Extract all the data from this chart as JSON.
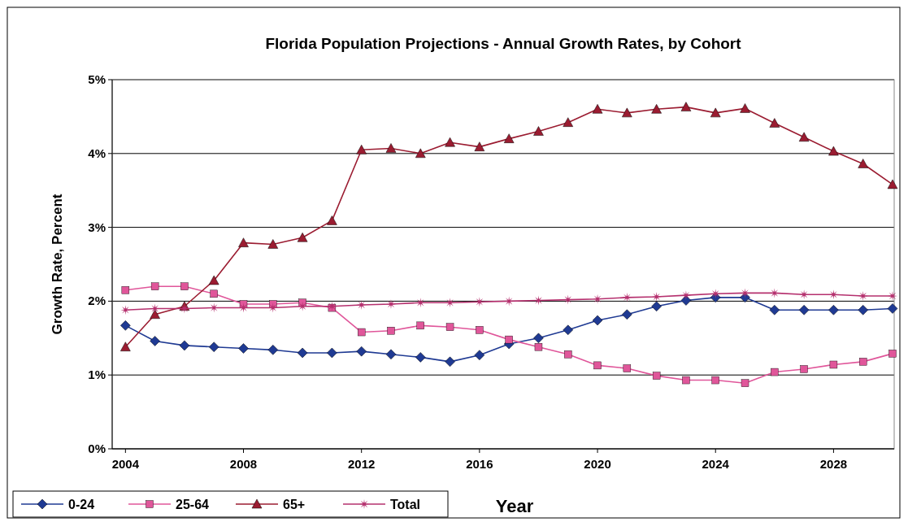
{
  "chart_data": {
    "type": "line",
    "title": "Florida Population Projections - Annual Growth Rates, by Cohort",
    "xlabel": "Year",
    "ylabel": "Growth Rate, Percent",
    "x": [
      2004,
      2005,
      2006,
      2007,
      2008,
      2009,
      2010,
      2011,
      2012,
      2013,
      2014,
      2015,
      2016,
      2017,
      2018,
      2019,
      2020,
      2021,
      2022,
      2023,
      2024,
      2025,
      2026,
      2027,
      2028,
      2029,
      2030
    ],
    "xlim": [
      2003.55,
      2030
    ],
    "xticks": [
      2004,
      2008,
      2012,
      2016,
      2020,
      2024,
      2028
    ],
    "ylim": [
      0,
      5
    ],
    "yticks": [
      {
        "value": 0,
        "label": "0%"
      },
      {
        "value": 1,
        "label": "1%"
      },
      {
        "value": 2,
        "label": "2%"
      },
      {
        "value": 3,
        "label": "3%"
      },
      {
        "value": 4,
        "label": "4%"
      },
      {
        "value": 5,
        "label": "5%"
      }
    ],
    "grid": "y",
    "legend": "bottom left",
    "series": [
      {
        "name": "0-24",
        "color": "#1f3a93",
        "marker": "diamond",
        "values": [
          1.67,
          1.46,
          1.4,
          1.38,
          1.36,
          1.34,
          1.3,
          1.3,
          1.32,
          1.28,
          1.24,
          1.18,
          1.27,
          1.42,
          1.5,
          1.61,
          1.74,
          1.82,
          1.93,
          2.01,
          2.05,
          2.05,
          1.88,
          1.88,
          1.88,
          1.88,
          1.9
        ]
      },
      {
        "name": "25-64",
        "color": "#e0569a",
        "marker": "square",
        "values": [
          2.15,
          2.2,
          2.2,
          2.1,
          1.96,
          1.96,
          1.98,
          1.91,
          1.58,
          1.6,
          1.67,
          1.65,
          1.61,
          1.48,
          1.38,
          1.28,
          1.13,
          1.09,
          0.99,
          0.93,
          0.93,
          0.89,
          1.04,
          1.08,
          1.14,
          1.18,
          1.29
        ]
      },
      {
        "name": "65+",
        "color": "#9b1c31",
        "marker": "triangle",
        "values": [
          1.38,
          1.82,
          1.93,
          2.28,
          2.79,
          2.77,
          2.86,
          3.09,
          4.05,
          4.07,
          4.0,
          4.15,
          4.09,
          4.2,
          4.3,
          4.42,
          4.6,
          4.55,
          4.6,
          4.63,
          4.55,
          4.61,
          4.41,
          4.22,
          4.03,
          3.86,
          3.58
        ]
      },
      {
        "name": "Total",
        "color": "#b5306e",
        "marker": "star",
        "values": [
          1.88,
          1.9,
          1.9,
          1.91,
          1.91,
          1.91,
          1.93,
          1.93,
          1.95,
          1.96,
          1.98,
          1.98,
          1.99,
          2.0,
          2.01,
          2.02,
          2.03,
          2.05,
          2.06,
          2.08,
          2.1,
          2.11,
          2.11,
          2.09,
          2.09,
          2.07,
          2.07
        ]
      }
    ]
  }
}
